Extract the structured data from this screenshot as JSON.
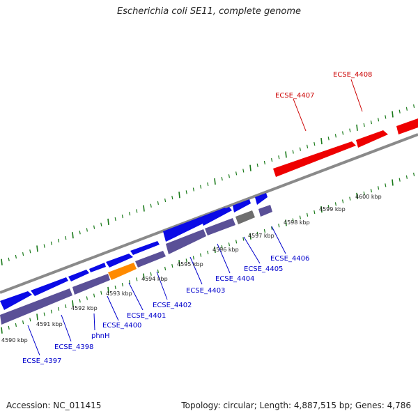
{
  "title": "Escherichia coli SE11, complete genome",
  "footer": {
    "accession": "Accession: NC_011415",
    "summary": "Topology: circular; Length: 4,887,515 bp; Genes: 4,786"
  },
  "colors": {
    "forward_cds": "#0a0ae6",
    "reverse_cds": "#5a5097",
    "rna": "#ff8a00",
    "other": "#6e6e6e",
    "highlight": "#ee0000",
    "backbone": "#8a8a8a",
    "ticks": "#1a7a1a",
    "label_blue": "#0000cc",
    "label_red": "#cc0000"
  },
  "scale_labels": [
    "4590 kbp",
    "4591 kbp",
    "4592 kbp",
    "4593 kbp",
    "4594 kbp",
    "4595 kbp",
    "4596 kbp",
    "4597 kbp",
    "4598 kbp",
    "4599 kbp",
    "4600 kbp"
  ],
  "gene_labels": [
    {
      "text": "ECSE_4397",
      "color": "blue"
    },
    {
      "text": "ECSE_4398",
      "color": "blue"
    },
    {
      "text": "phnH",
      "color": "blue"
    },
    {
      "text": "ECSE_4400",
      "color": "blue"
    },
    {
      "text": "ECSE_4401",
      "color": "blue"
    },
    {
      "text": "ECSE_4402",
      "color": "blue"
    },
    {
      "text": "ECSE_4403",
      "color": "blue"
    },
    {
      "text": "ECSE_4404",
      "color": "blue"
    },
    {
      "text": "ECSE_4405",
      "color": "blue"
    },
    {
      "text": "ECSE_4406",
      "color": "blue"
    },
    {
      "text": "ECSE_4407",
      "color": "red"
    },
    {
      "text": "ECSE_4408",
      "color": "red"
    }
  ]
}
